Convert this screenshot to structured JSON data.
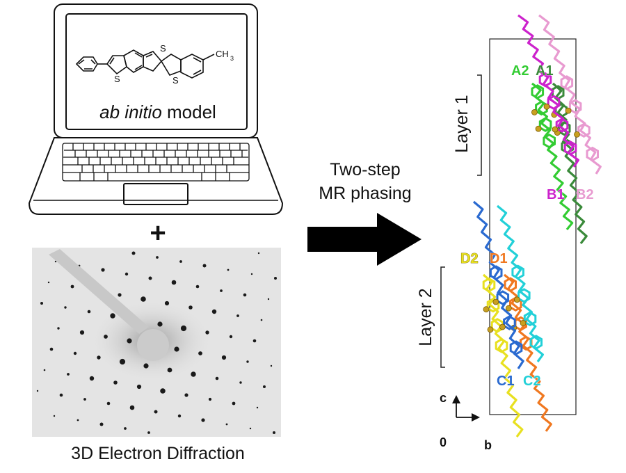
{
  "laptop": {
    "screen_caption_italic": "ab initio",
    "screen_caption_rest": " model",
    "molecule": {
      "sulfur_label_1": "S",
      "sulfur_label_2": "S",
      "sulfur_label_3": "S",
      "methyl_label": "CH",
      "methyl_subscript": "3"
    }
  },
  "plus_sign": "+",
  "diffraction": {
    "caption": "3D Electron Diffraction"
  },
  "arrow": {
    "line1": "Two-step",
    "line2": "MR phasing"
  },
  "structure": {
    "layer1_label": "Layer 1",
    "layer2_label": "Layer 2",
    "molecules": [
      {
        "label": "A2",
        "color": "#33cc33"
      },
      {
        "label": "A1",
        "color": "#3a8a3a"
      },
      {
        "label": "B1",
        "color": "#cc22cc"
      },
      {
        "label": "B2",
        "color": "#e89ad0"
      },
      {
        "label": "D2",
        "color": "#e8e020"
      },
      {
        "label": "D1",
        "color": "#f07820"
      },
      {
        "label": "C1",
        "color": "#2a6ad0"
      },
      {
        "label": "C2",
        "color": "#22d0d8"
      }
    ],
    "axes": {
      "origin": "0",
      "c_label": "c",
      "b_label": "b"
    },
    "sulfur_color": "#c8a020"
  }
}
